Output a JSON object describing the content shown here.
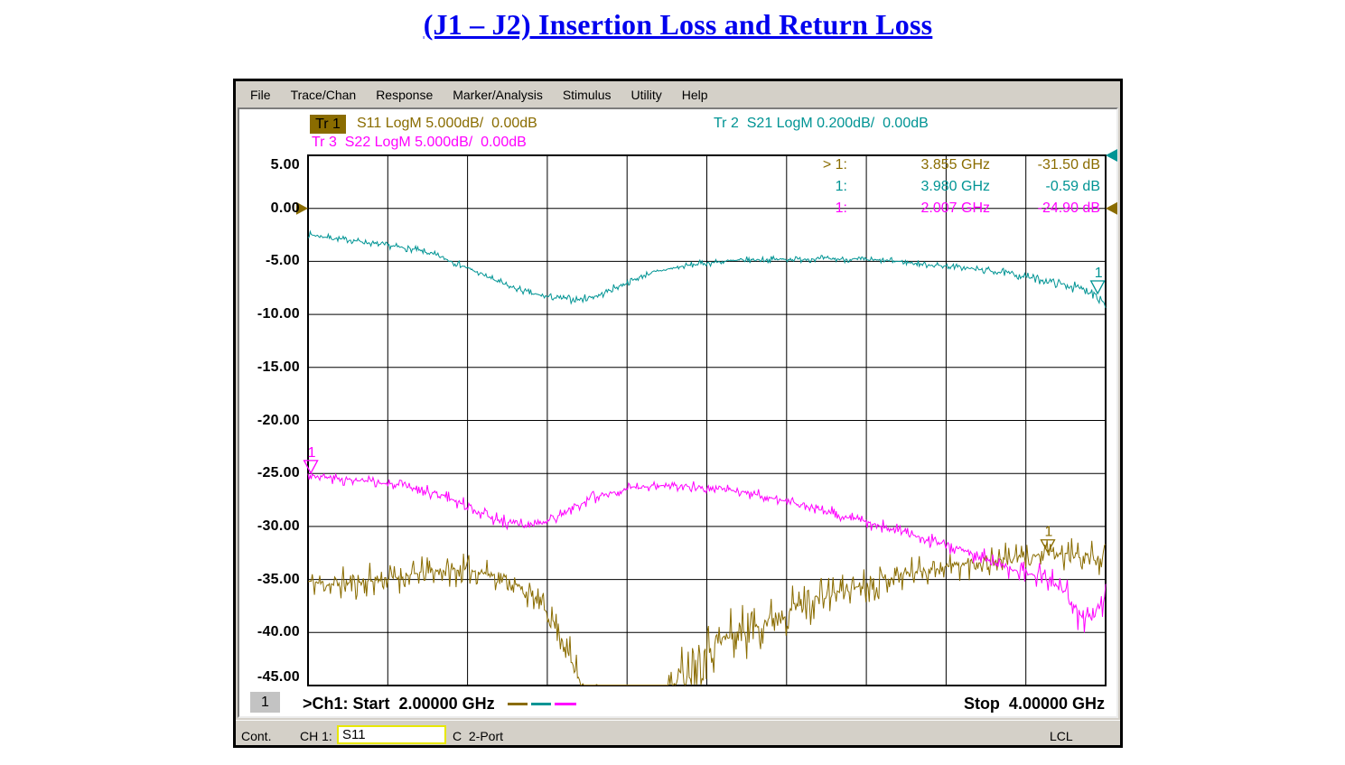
{
  "title": {
    "text": "(J1 – J2) Insertion Loss and Return Loss",
    "color": "#0000ee"
  },
  "menu": {
    "items": [
      "File",
      "Trace/Chan",
      "Response",
      "Marker/Analysis",
      "Stimulus",
      "Utility",
      "Help"
    ]
  },
  "legend": {
    "tr1_label": "Tr 1",
    "tr1_text": "S11 LogM 5.000dB/  0.00dB",
    "tr3_label": "Tr 3",
    "tr3_text": "S22 LogM 5.000dB/  0.00dB",
    "tr2_label": "Tr 2",
    "tr2_text": "S21 LogM 0.200dB/  0.00dB"
  },
  "colors": {
    "trace1_olive": "#8a6c00",
    "trace2_teal": "#009494",
    "trace3_magenta": "#ff00ff",
    "chrome_gray": "#d4d0c8",
    "title_blue": "#0000ee"
  },
  "chart_data": {
    "type": "line",
    "x_axis": {
      "unit": "GHz",
      "start": 2.0,
      "stop": 4.0,
      "divisions": 10
    },
    "y_axis": {
      "unit": "dB",
      "top": 5.0,
      "bottom": -45.0,
      "per_div": 5.0,
      "tick_labels": [
        "5.00",
        "0.00",
        "-5.00",
        "-10.00",
        "-15.00",
        "-20.00",
        "-25.00",
        "-30.00",
        "-35.00",
        "-40.00",
        "-45.00"
      ]
    },
    "series": [
      {
        "name": "S11",
        "trace": "Tr 1",
        "color": "#8a6c00",
        "seed": 11,
        "anchors": [
          [
            2.0,
            -35.2,
            0.8
          ],
          [
            2.06,
            -35.5,
            0.8
          ],
          [
            2.12,
            -35.3,
            0.8
          ],
          [
            2.18,
            -35.0,
            0.8
          ],
          [
            2.24,
            -34.7,
            0.7
          ],
          [
            2.3,
            -34.3,
            0.7
          ],
          [
            2.36,
            -34.1,
            0.7
          ],
          [
            2.42,
            -34.2,
            0.7
          ],
          [
            2.46,
            -34.5,
            0.6
          ],
          [
            2.5,
            -35.1,
            0.6
          ],
          [
            2.54,
            -36.0,
            0.6
          ],
          [
            2.58,
            -37.2,
            0.6
          ],
          [
            2.61,
            -38.6,
            0.7
          ],
          [
            2.63,
            -40.0,
            0.8
          ],
          [
            2.65,
            -41.8,
            0.9
          ],
          [
            2.67,
            -43.6,
            1.0
          ],
          [
            2.7,
            -45.8,
            1.1
          ],
          [
            2.74,
            -47.2,
            1.2
          ],
          [
            2.8,
            -47.6,
            1.2
          ],
          [
            2.87,
            -47.3,
            1.2
          ],
          [
            2.9,
            -46.2,
            1.3
          ],
          [
            2.93,
            -44.2,
            1.4
          ],
          [
            2.96,
            -42.8,
            1.4
          ],
          [
            3.0,
            -41.4,
            1.4
          ],
          [
            3.05,
            -40.5,
            1.4
          ],
          [
            3.1,
            -39.7,
            1.3
          ],
          [
            3.15,
            -38.9,
            1.2
          ],
          [
            3.2,
            -37.9,
            1.1
          ],
          [
            3.26,
            -37.0,
            1.0
          ],
          [
            3.32,
            -36.3,
            0.9
          ],
          [
            3.38,
            -35.6,
            0.8
          ],
          [
            3.44,
            -35.0,
            0.8
          ],
          [
            3.5,
            -34.4,
            0.7
          ],
          [
            3.56,
            -34.0,
            0.7
          ],
          [
            3.62,
            -33.7,
            0.7
          ],
          [
            3.68,
            -33.4,
            0.7
          ],
          [
            3.74,
            -33.1,
            0.7
          ],
          [
            3.8,
            -32.9,
            0.6
          ],
          [
            3.86,
            -32.6,
            0.6
          ],
          [
            3.92,
            -32.7,
            0.7
          ],
          [
            3.96,
            -32.9,
            0.7
          ],
          [
            4.0,
            -33.1,
            0.7
          ]
        ]
      },
      {
        "name": "S21",
        "trace": "Tr 2",
        "color": "#009494",
        "seed": 7,
        "anchors": [
          [
            2.0,
            -2.45,
            0.15
          ],
          [
            2.06,
            -2.8,
            0.15
          ],
          [
            2.12,
            -3.05,
            0.15
          ],
          [
            2.16,
            -3.3,
            0.15
          ],
          [
            2.22,
            -3.6,
            0.15
          ],
          [
            2.27,
            -3.9,
            0.15
          ],
          [
            2.32,
            -4.4,
            0.15
          ],
          [
            2.38,
            -5.3,
            0.15
          ],
          [
            2.44,
            -6.3,
            0.15
          ],
          [
            2.5,
            -7.3,
            0.18
          ],
          [
            2.56,
            -8.05,
            0.18
          ],
          [
            2.62,
            -8.45,
            0.18
          ],
          [
            2.68,
            -8.6,
            0.18
          ],
          [
            2.73,
            -8.2,
            0.18
          ],
          [
            2.77,
            -7.5,
            0.18
          ],
          [
            2.81,
            -6.85,
            0.15
          ],
          [
            2.85,
            -6.2,
            0.15
          ],
          [
            2.9,
            -5.75,
            0.15
          ],
          [
            2.95,
            -5.4,
            0.15
          ],
          [
            3.0,
            -5.15,
            0.15
          ],
          [
            3.06,
            -4.95,
            0.15
          ],
          [
            3.12,
            -4.85,
            0.15
          ],
          [
            3.2,
            -4.8,
            0.15
          ],
          [
            3.3,
            -4.75,
            0.15
          ],
          [
            3.4,
            -4.85,
            0.15
          ],
          [
            3.48,
            -5.0,
            0.15
          ],
          [
            3.55,
            -5.3,
            0.15
          ],
          [
            3.62,
            -5.5,
            0.15
          ],
          [
            3.7,
            -5.85,
            0.18
          ],
          [
            3.76,
            -6.15,
            0.18
          ],
          [
            3.82,
            -6.6,
            0.2
          ],
          [
            3.88,
            -7.05,
            0.2
          ],
          [
            3.93,
            -7.5,
            0.25
          ],
          [
            3.97,
            -7.9,
            0.3
          ],
          [
            3.99,
            -8.5,
            0.35
          ],
          [
            4.0,
            -9.3,
            0.3
          ]
        ]
      },
      {
        "name": "S22",
        "trace": "Tr 3",
        "color": "#ff00ff",
        "seed": 3,
        "anchors": [
          [
            2.0,
            -25.1,
            0.25
          ],
          [
            2.05,
            -25.4,
            0.25
          ],
          [
            2.1,
            -25.6,
            0.25
          ],
          [
            2.16,
            -25.8,
            0.25
          ],
          [
            2.22,
            -26.1,
            0.25
          ],
          [
            2.28,
            -26.5,
            0.25
          ],
          [
            2.34,
            -27.1,
            0.3
          ],
          [
            2.39,
            -27.9,
            0.3
          ],
          [
            2.43,
            -28.6,
            0.3
          ],
          [
            2.47,
            -29.3,
            0.3
          ],
          [
            2.51,
            -29.7,
            0.3
          ],
          [
            2.55,
            -29.9,
            0.3
          ],
          [
            2.59,
            -29.7,
            0.3
          ],
          [
            2.63,
            -29.0,
            0.3
          ],
          [
            2.67,
            -28.2,
            0.3
          ],
          [
            2.71,
            -27.4,
            0.3
          ],
          [
            2.75,
            -26.9,
            0.25
          ],
          [
            2.8,
            -26.5,
            0.25
          ],
          [
            2.86,
            -26.2,
            0.25
          ],
          [
            2.92,
            -26.1,
            0.25
          ],
          [
            2.98,
            -26.2,
            0.25
          ],
          [
            3.04,
            -26.5,
            0.25
          ],
          [
            3.1,
            -26.8,
            0.25
          ],
          [
            3.16,
            -27.3,
            0.25
          ],
          [
            3.22,
            -27.8,
            0.25
          ],
          [
            3.28,
            -28.4,
            0.3
          ],
          [
            3.34,
            -29.0,
            0.3
          ],
          [
            3.4,
            -29.6,
            0.3
          ],
          [
            3.46,
            -30.2,
            0.3
          ],
          [
            3.52,
            -30.9,
            0.3
          ],
          [
            3.58,
            -31.5,
            0.35
          ],
          [
            3.64,
            -32.2,
            0.35
          ],
          [
            3.7,
            -33.0,
            0.4
          ],
          [
            3.76,
            -34.0,
            0.45
          ],
          [
            3.8,
            -34.5,
            0.5
          ],
          [
            3.84,
            -34.6,
            0.55
          ],
          [
            3.87,
            -35.2,
            0.6
          ],
          [
            3.9,
            -36.3,
            0.7
          ],
          [
            3.93,
            -38.0,
            0.8
          ],
          [
            3.95,
            -38.9,
            0.8
          ],
          [
            3.97,
            -38.2,
            0.8
          ],
          [
            3.99,
            -37.3,
            0.8
          ],
          [
            4.0,
            -37.0,
            0.7
          ]
        ]
      }
    ],
    "markers": [
      {
        "series": "S11",
        "label": "1",
        "prefix": "> 1:",
        "freq_ghz": 3.855,
        "freq_text": "3.855 GHz",
        "value_text": "-31.50 dB",
        "color": "#8a6c00"
      },
      {
        "series": "S21",
        "label": "1",
        "prefix": "1:",
        "freq_ghz": 3.98,
        "freq_text": "3.980 GHz",
        "value_text": "-0.59 dB",
        "color": "#009494"
      },
      {
        "series": "S22",
        "label": "1",
        "prefix": "1:",
        "freq_ghz": 2.007,
        "freq_text": "2.007 GHz",
        "value_text": "-24.90 dB",
        "color": "#ff00ff"
      }
    ],
    "reference_arrows": [
      {
        "color": "#8a6c00",
        "edge": "left",
        "db": 0
      },
      {
        "color": "#8a6c00",
        "edge": "right",
        "db": 0
      },
      {
        "color": "#009494",
        "edge": "right",
        "db": 5
      }
    ]
  },
  "footer": {
    "channel_badge": "1",
    "start_text": ">Ch1: Start  2.00000 GHz",
    "stop_text": "Stop  4.00000 GHz"
  },
  "status_bar": {
    "mode": "Cont.",
    "channel": "CH 1:",
    "measurement": "S11",
    "cal": "C  2-Port",
    "remote": "LCL"
  }
}
